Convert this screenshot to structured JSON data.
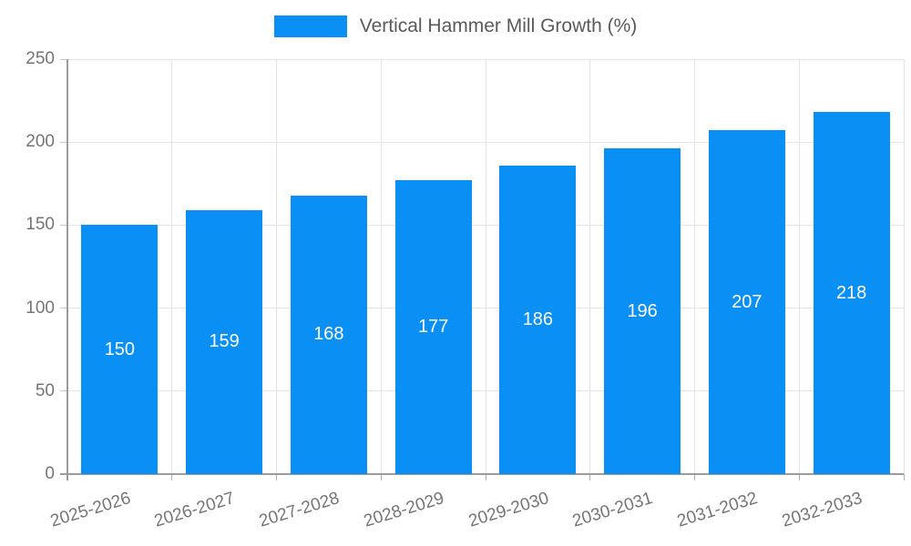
{
  "chart_data": {
    "type": "bar",
    "title": "",
    "legend": [
      {
        "label": "Vertical Hammer Mill Growth (%)",
        "color": "#0a8ff4"
      }
    ],
    "legend_position": "top-center",
    "categories": [
      "2025-2026",
      "2026-2027",
      "2027-2028",
      "2028-2029",
      "2029-2030",
      "2030-2031",
      "2031-2032",
      "2032-2033"
    ],
    "series": [
      {
        "name": "Vertical Hammer Mill Growth (%)",
        "values": [
          150,
          159,
          168,
          177,
          186,
          196,
          207,
          218
        ]
      }
    ],
    "data_labels": [
      "150",
      "159",
      "168",
      "177",
      "186",
      "196",
      "207",
      "218"
    ],
    "data_label_position": "inside-center",
    "xlabel": "",
    "ylabel": "",
    "ylim": [
      0,
      250
    ],
    "yticks": [
      0,
      50,
      100,
      150,
      200,
      250
    ],
    "grid": true,
    "colors": {
      "bar": "#0a8ff4",
      "gridline": "#e4e4e4",
      "axis": "#9b9b9b",
      "tick_label": "#757575",
      "legend_text": "#5a5a5a",
      "value_label": "#ffffff"
    }
  }
}
